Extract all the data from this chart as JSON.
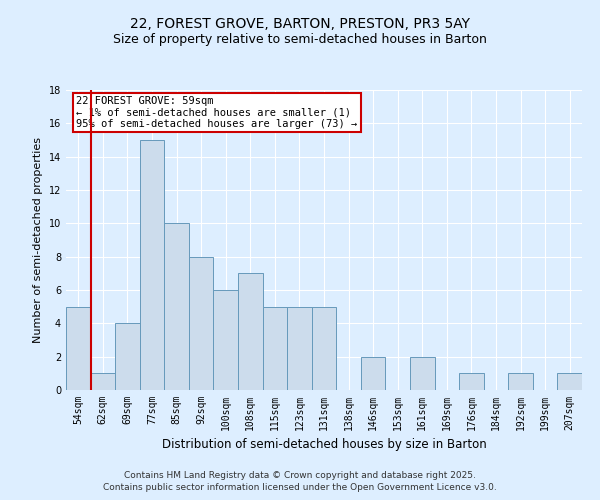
{
  "title": "22, FOREST GROVE, BARTON, PRESTON, PR3 5AY",
  "subtitle": "Size of property relative to semi-detached houses in Barton",
  "xlabel": "Distribution of semi-detached houses by size in Barton",
  "ylabel": "Number of semi-detached properties",
  "categories": [
    "54sqm",
    "62sqm",
    "69sqm",
    "77sqm",
    "85sqm",
    "92sqm",
    "100sqm",
    "108sqm",
    "115sqm",
    "123sqm",
    "131sqm",
    "138sqm",
    "146sqm",
    "153sqm",
    "161sqm",
    "169sqm",
    "176sqm",
    "184sqm",
    "192sqm",
    "199sqm",
    "207sqm"
  ],
  "values": [
    5,
    1,
    4,
    15,
    10,
    8,
    6,
    7,
    5,
    5,
    5,
    0,
    2,
    0,
    2,
    0,
    1,
    0,
    1,
    0,
    1
  ],
  "bar_color": "#ccdcec",
  "bar_edge_color": "#6699bb",
  "background_color": "#ddeeff",
  "grid_color": "#ffffff",
  "annotation_text": "22 FOREST GROVE: 59sqm\n← 1% of semi-detached houses are smaller (1)\n95% of semi-detached houses are larger (73) →",
  "annotation_box_color": "#ffffff",
  "annotation_box_edge": "#cc0000",
  "vline_color": "#cc0000",
  "ylim": [
    0,
    18
  ],
  "yticks": [
    0,
    2,
    4,
    6,
    8,
    10,
    12,
    14,
    16,
    18
  ],
  "footer_line1": "Contains HM Land Registry data © Crown copyright and database right 2025.",
  "footer_line2": "Contains public sector information licensed under the Open Government Licence v3.0.",
  "title_fontsize": 10,
  "subtitle_fontsize": 9,
  "annotation_fontsize": 7.5,
  "tick_fontsize": 7,
  "ylabel_fontsize": 8,
  "xlabel_fontsize": 8.5,
  "footer_fontsize": 6.5
}
